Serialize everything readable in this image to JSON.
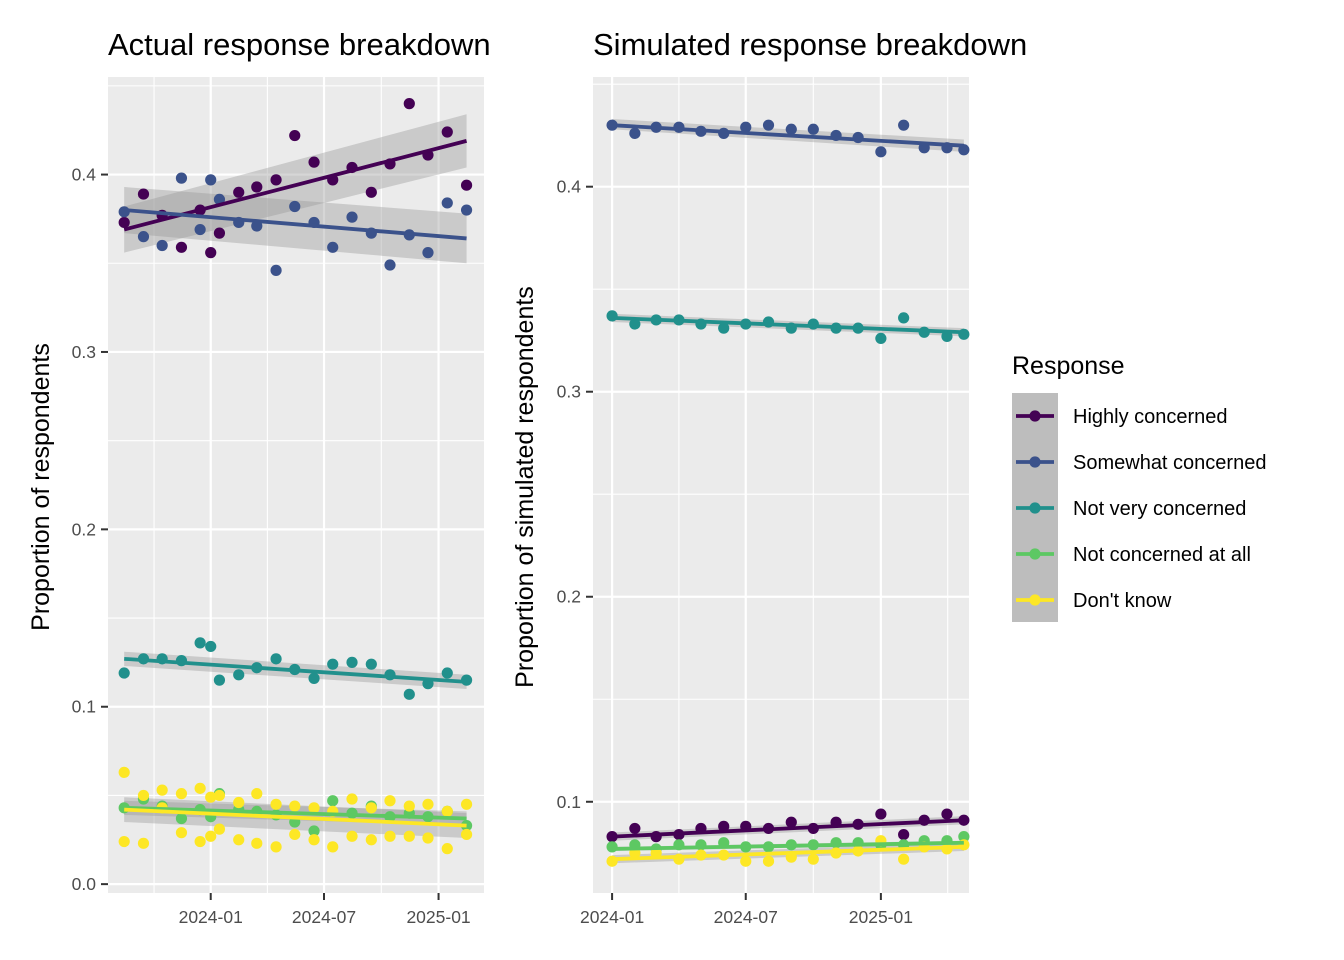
{
  "legend": {
    "title": "Response",
    "items": [
      {
        "label": "Highly concerned",
        "color": "#440154"
      },
      {
        "label": "Somewhat concerned",
        "color": "#3B528B"
      },
      {
        "label": "Not very concerned",
        "color": "#21908C"
      },
      {
        "label": "Not concerned at all",
        "color": "#5DC863"
      },
      {
        "label": "Don't know",
        "color": "#FDE725"
      }
    ]
  },
  "chart_data": [
    {
      "type": "scatter",
      "title": "Actual response breakdown",
      "xlabel": "",
      "ylabel": "Proportion of respondents",
      "x_type": "date",
      "xlim": [
        "2023-07-20",
        "2025-03-15"
      ],
      "ylim": [
        -0.005,
        0.455
      ],
      "x_ticks": [
        "2024-01-01",
        "2024-07-01",
        "2025-01-01"
      ],
      "x_tick_labels": [
        "2024-01",
        "2024-07",
        "2025-01"
      ],
      "y_ticks": [
        0.0,
        0.1,
        0.2,
        0.3,
        0.4
      ],
      "y_tick_labels": [
        "0.0",
        "0.1",
        "0.2",
        "0.3",
        "0.4"
      ],
      "grid": true,
      "trend": "linear fit with confidence band",
      "x": [
        "2023-08-15",
        "2023-09-15",
        "2023-10-15",
        "2023-11-15",
        "2023-12-15",
        "2024-01-01",
        "2024-01-15",
        "2024-02-15",
        "2024-03-15",
        "2024-04-15",
        "2024-05-15",
        "2024-06-15",
        "2024-07-15",
        "2024-08-15",
        "2024-09-15",
        "2024-10-15",
        "2024-11-15",
        "2024-12-15",
        "2025-01-15",
        "2025-02-15"
      ],
      "series": [
        {
          "name": "Highly concerned",
          "color": "#440154",
          "y": [
            0.373,
            0.389,
            0.377,
            0.359,
            0.38,
            0.356,
            0.367,
            0.39,
            0.393,
            0.397,
            0.422,
            0.407,
            0.397,
            0.404,
            0.39,
            0.406,
            0.44,
            0.411,
            0.424,
            0.394
          ],
          "fit": [
            0.369,
            0.419
          ],
          "band": [
            [
              0.356,
              0.382
            ],
            [
              0.404,
              0.434
            ]
          ]
        },
        {
          "name": "Somewhat concerned",
          "color": "#3B528B",
          "y": [
            0.379,
            0.365,
            0.36,
            0.398,
            0.369,
            0.397,
            0.386,
            0.373,
            0.371,
            0.346,
            0.382,
            0.373,
            0.359,
            0.376,
            0.367,
            0.349,
            0.366,
            0.356,
            0.384,
            0.38
          ],
          "fit": [
            0.38,
            0.364
          ],
          "band": [
            [
              0.367,
              0.393
            ],
            [
              0.35,
              0.378
            ]
          ]
        },
        {
          "name": "Not very concerned",
          "color": "#21908C",
          "y": [
            0.119,
            0.127,
            0.127,
            0.126,
            0.136,
            0.134,
            0.115,
            0.118,
            0.122,
            0.127,
            0.121,
            0.116,
            0.124,
            0.125,
            0.124,
            0.118,
            0.107,
            0.113,
            0.119,
            0.115
          ],
          "fit": [
            0.127,
            0.114
          ],
          "band": [
            [
              0.123,
              0.131
            ],
            [
              0.11,
              0.118
            ]
          ]
        },
        {
          "name": "Not concerned at all",
          "color": "#5DC863",
          "y": [
            0.043,
            0.048,
            0.044,
            0.037,
            0.042,
            0.038,
            0.051,
            0.042,
            0.041,
            0.039,
            0.035,
            0.03,
            0.047,
            0.04,
            0.044,
            0.038,
            0.04,
            0.038,
            0.041,
            0.033
          ],
          "fit": [
            0.043,
            0.037
          ],
          "band": [
            [
              0.039,
              0.047
            ],
            [
              0.033,
              0.041
            ]
          ]
        },
        {
          "name": "Don't know",
          "color": "#FDE725",
          "y": [
            0.063,
            0.05,
            0.053,
            0.051,
            0.054,
            0.049,
            0.05,
            0.046,
            0.051,
            0.045,
            0.044,
            0.043,
            0.041,
            0.048,
            0.043,
            0.047,
            0.044,
            0.045,
            0.041,
            0.045
          ],
          "y2": [
            0.024,
            0.023,
            0.043,
            0.029,
            0.024,
            0.027,
            0.031,
            0.025,
            0.023,
            0.021,
            0.028,
            0.025,
            0.021,
            0.027,
            0.025,
            0.027,
            0.027,
            0.026,
            0.02,
            0.028
          ],
          "fit": [
            0.042,
            0.033
          ],
          "band": [
            [
              0.035,
              0.049
            ],
            [
              0.026,
              0.04
            ]
          ]
        }
      ]
    },
    {
      "type": "scatter",
      "title": "Simulated response breakdown",
      "xlabel": "",
      "ylabel": "Proportion of simulated respondents",
      "x_type": "date",
      "xlim": [
        "2023-12-06",
        "2025-05-01"
      ],
      "ylim": [
        0.0555,
        0.4535
      ],
      "x_ticks": [
        "2024-01-01",
        "2024-07-01",
        "2025-01-01"
      ],
      "x_tick_labels": [
        "2024-01",
        "2024-07",
        "2025-01"
      ],
      "y_ticks": [
        0.1,
        0.2,
        0.3,
        0.4
      ],
      "y_tick_labels": [
        "0.1",
        "0.2",
        "0.3",
        "0.4"
      ],
      "grid": true,
      "trend": "linear fit with confidence band",
      "x": [
        "2024-01-01",
        "2024-02-01",
        "2024-03-01",
        "2024-04-01",
        "2024-05-01",
        "2024-06-01",
        "2024-07-01",
        "2024-08-01",
        "2024-09-01",
        "2024-10-01",
        "2024-11-01",
        "2024-12-01",
        "2025-01-01",
        "2025-02-01",
        "2025-03-01",
        "2025-04-01",
        "2025-04-24"
      ],
      "series": [
        {
          "name": "Highly concerned",
          "color": "#440154",
          "y": [
            0.083,
            0.087,
            0.083,
            0.084,
            0.087,
            0.088,
            0.088,
            0.087,
            0.09,
            0.087,
            0.09,
            0.089,
            0.094,
            0.084,
            0.091,
            0.094,
            0.091
          ],
          "fit": [
            0.083,
            0.091
          ],
          "band": [
            [
              0.081,
              0.085
            ],
            [
              0.089,
              0.093
            ]
          ]
        },
        {
          "name": "Somewhat concerned",
          "color": "#3B528B",
          "y": [
            0.43,
            0.426,
            0.429,
            0.429,
            0.427,
            0.426,
            0.429,
            0.43,
            0.428,
            0.428,
            0.425,
            0.424,
            0.417,
            0.43,
            0.419,
            0.419,
            0.418
          ],
          "fit": [
            0.43,
            0.42
          ],
          "band": [
            [
              0.428,
              0.433
            ],
            [
              0.417,
              0.423
            ]
          ]
        },
        {
          "name": "Not very concerned",
          "color": "#21908C",
          "y": [
            0.337,
            0.333,
            0.335,
            0.335,
            0.333,
            0.331,
            0.333,
            0.334,
            0.331,
            0.333,
            0.331,
            0.331,
            0.326,
            0.336,
            0.329,
            0.327,
            0.328
          ],
          "fit": [
            0.336,
            0.329
          ],
          "band": [
            [
              0.334,
              0.338
            ],
            [
              0.327,
              0.331
            ]
          ]
        },
        {
          "name": "Not concerned at all",
          "color": "#5DC863",
          "y": [
            0.078,
            0.079,
            0.077,
            0.079,
            0.079,
            0.08,
            0.078,
            0.078,
            0.079,
            0.079,
            0.08,
            0.08,
            0.079,
            0.079,
            0.081,
            0.081,
            0.083
          ],
          "fit": [
            0.077,
            0.08
          ],
          "band": [
            [
              0.076,
              0.078
            ],
            [
              0.079,
              0.081
            ]
          ]
        },
        {
          "name": "Don't know",
          "color": "#FDE725",
          "y": [
            0.071,
            0.075,
            0.075,
            0.072,
            0.074,
            0.074,
            0.071,
            0.071,
            0.073,
            0.072,
            0.075,
            0.076,
            0.081,
            0.072,
            0.078,
            0.077,
            0.079
          ],
          "fit": [
            0.072,
            0.078
          ],
          "band": [
            [
              0.07,
              0.074
            ],
            [
              0.076,
              0.08
            ]
          ]
        }
      ]
    }
  ]
}
